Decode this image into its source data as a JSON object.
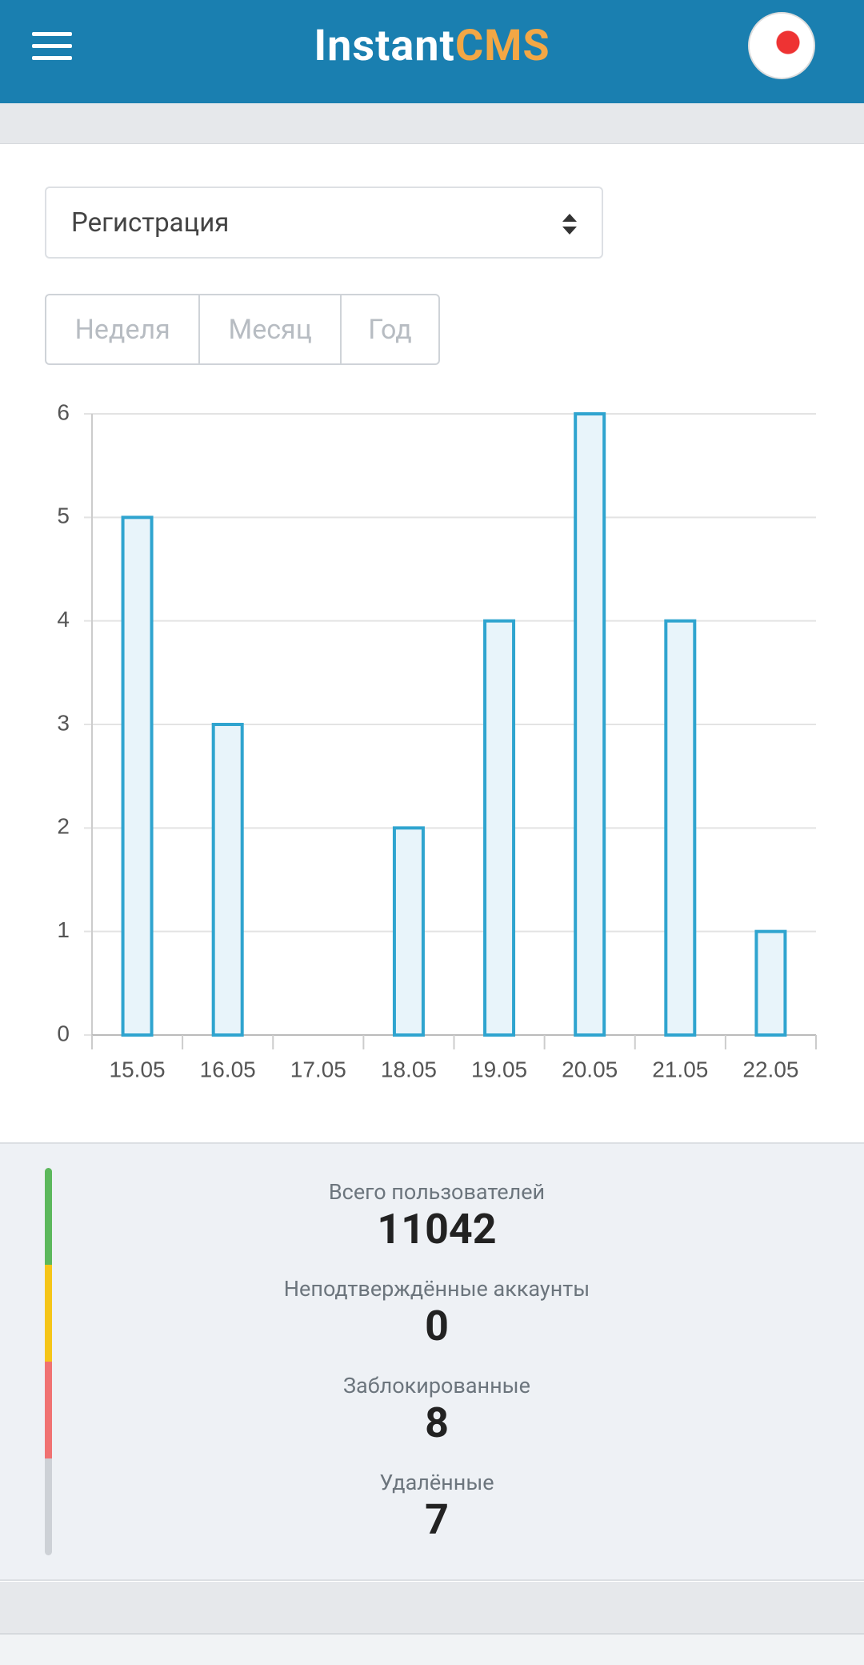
{
  "header": {
    "logo_part1": "Instant",
    "logo_part2": "CMS"
  },
  "select": {
    "label": "Регистрация"
  },
  "periods": [
    "Неделя",
    "Месяц",
    "Год"
  ],
  "chart_data": {
    "type": "bar",
    "categories": [
      "15.05",
      "16.05",
      "17.05",
      "18.05",
      "19.05",
      "20.05",
      "21.05",
      "22.05"
    ],
    "values": [
      5,
      3,
      0,
      2,
      4,
      6,
      4,
      1
    ],
    "color": "#2fa4cf",
    "ylim": [
      0,
      6
    ],
    "yticks": [
      0,
      1,
      2,
      3,
      4,
      5,
      6
    ],
    "grid": true
  },
  "stats": [
    {
      "label": "Всего пользователей",
      "value": "11042"
    },
    {
      "label": "Неподтверждённые аккаунты",
      "value": "0"
    },
    {
      "label": "Заблокированные",
      "value": "8"
    },
    {
      "label": "Удалённые",
      "value": "7"
    }
  ]
}
